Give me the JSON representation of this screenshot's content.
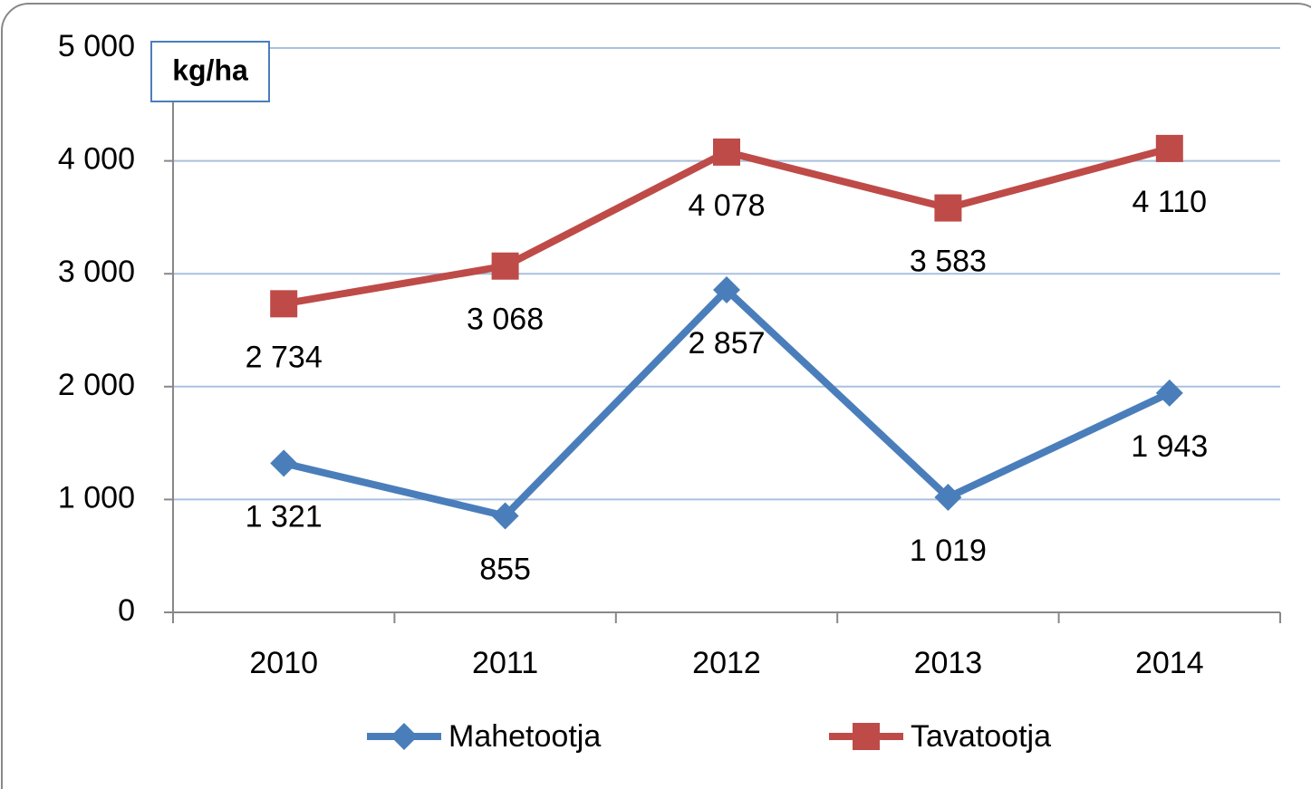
{
  "chart_data": {
    "type": "line",
    "y_label": "kg/ha",
    "categories": [
      "2010",
      "2011",
      "2012",
      "2013",
      "2014"
    ],
    "series": [
      {
        "name": "Mahetootja",
        "color": "#4a7ebb",
        "marker": "diamond",
        "values": [
          1321,
          855,
          2857,
          1019,
          1943
        ],
        "value_labels": [
          "1 321",
          "855",
          "2 857",
          "1 019",
          "1 943"
        ]
      },
      {
        "name": "Tavatootja",
        "color": "#be4b48",
        "marker": "square",
        "values": [
          2734,
          3068,
          4078,
          3583,
          4110
        ],
        "value_labels": [
          "2 734",
          "3 068",
          "4 078",
          "3 583",
          "4 110"
        ]
      }
    ],
    "ylim": [
      0,
      5000
    ],
    "yticks": [
      0,
      {
        "value": 1000,
        "label": "1 000"
      },
      {
        "value": 2000,
        "label": "2 000"
      },
      {
        "value": 3000,
        "label": "3 000"
      },
      {
        "value": 4000,
        "label": "4 000"
      },
      {
        "value": 5000,
        "label": "5 000"
      }
    ],
    "grid": true,
    "legend": "bottom"
  }
}
